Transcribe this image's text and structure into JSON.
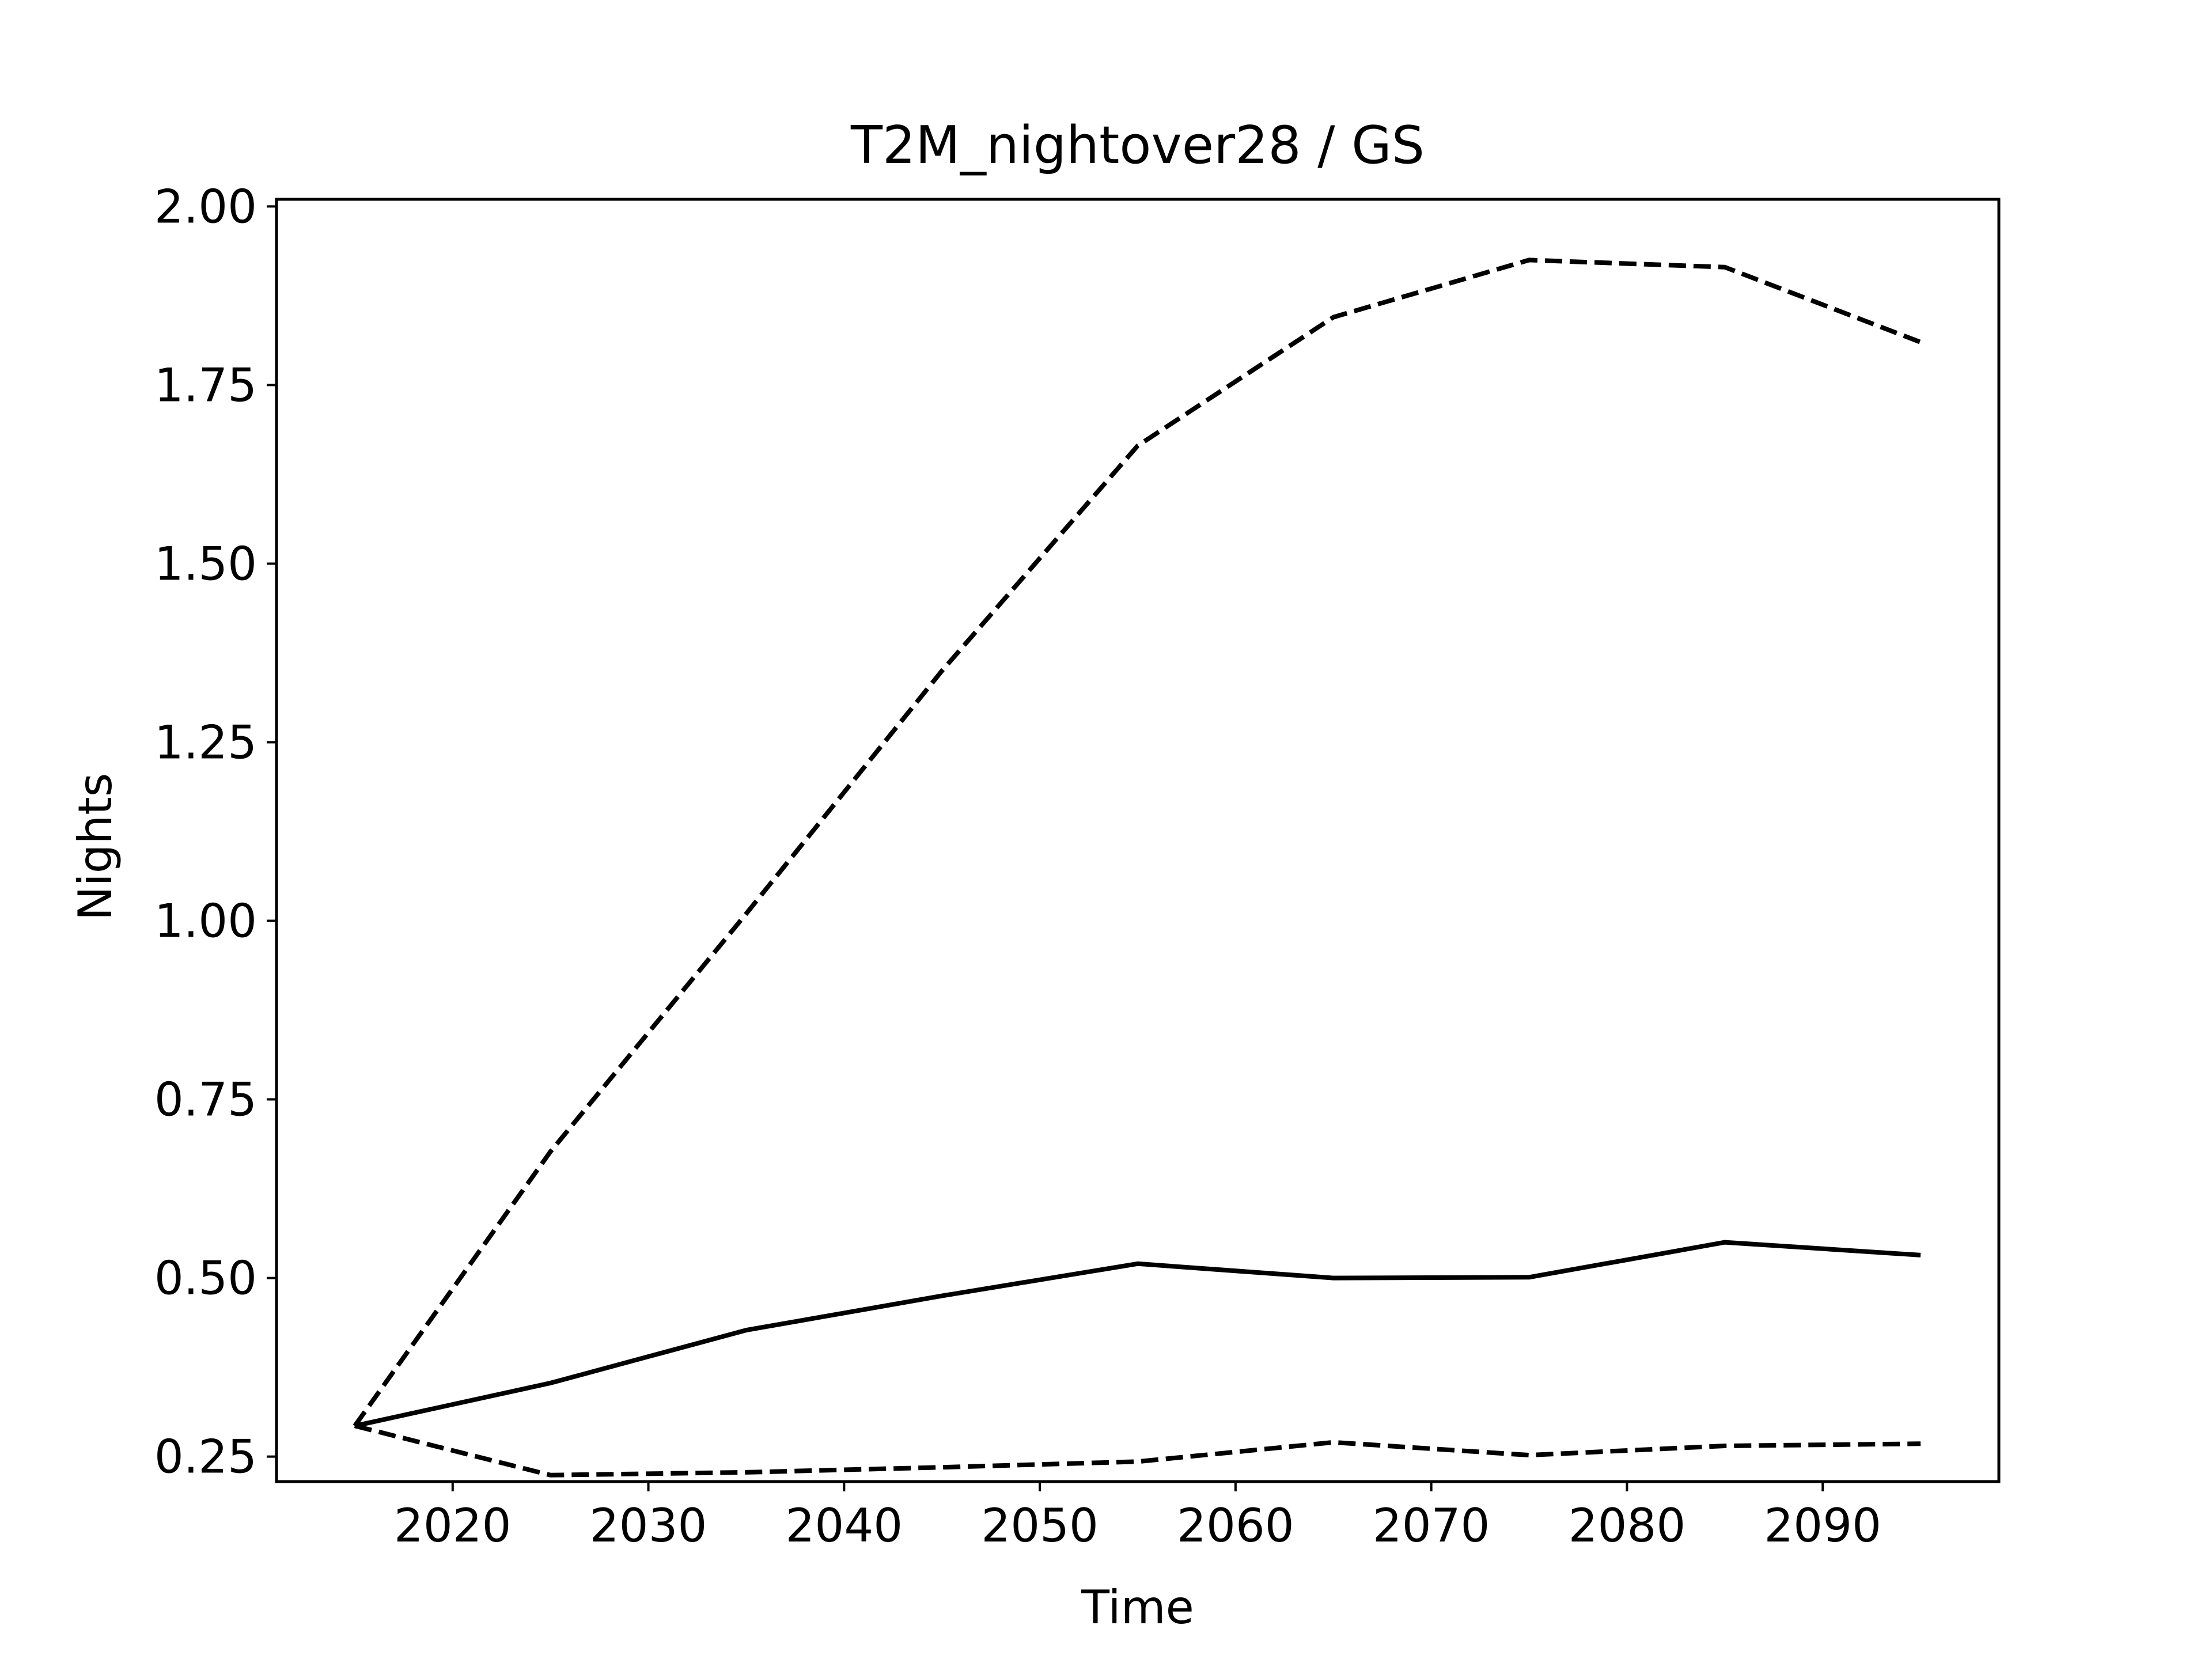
{
  "chart_data": {
    "type": "line",
    "title": "T2M_nightover28 / GS",
    "xlabel": "Time",
    "ylabel": "Nights",
    "xlim": [
      2011,
      2099
    ],
    "ylim": [
      0.215,
      2.01
    ],
    "xticks": [
      2020,
      2030,
      2040,
      2050,
      2060,
      2070,
      2080,
      2090
    ],
    "xtick_labels": [
      "2020",
      "2030",
      "2040",
      "2050",
      "2060",
      "2070",
      "2080",
      "2090"
    ],
    "yticks": [
      0.25,
      0.5,
      0.75,
      1.0,
      1.25,
      1.5,
      1.75,
      2.0
    ],
    "ytick_labels": [
      "0.25",
      "0.50",
      "0.75",
      "1.00",
      "1.25",
      "1.50",
      "1.75",
      "2.00"
    ],
    "grid": false,
    "legend": null,
    "x": [
      2015,
      2025,
      2035,
      2045,
      2055,
      2065,
      2075,
      2085,
      2095
    ],
    "series": [
      {
        "style": "solid",
        "color": "#000000",
        "values": [
          0.293,
          0.353,
          0.427,
          0.475,
          0.52,
          0.5,
          0.501,
          0.55,
          0.532
        ]
      },
      {
        "style": "dashed",
        "color": "#000000",
        "values": [
          0.293,
          0.677,
          1.01,
          1.35,
          1.665,
          1.845,
          1.925,
          1.915,
          1.81
        ]
      },
      {
        "style": "dashed",
        "color": "#000000",
        "values": [
          0.293,
          0.224,
          0.228,
          0.235,
          0.243,
          0.27,
          0.252,
          0.265,
          0.268
        ]
      }
    ]
  }
}
